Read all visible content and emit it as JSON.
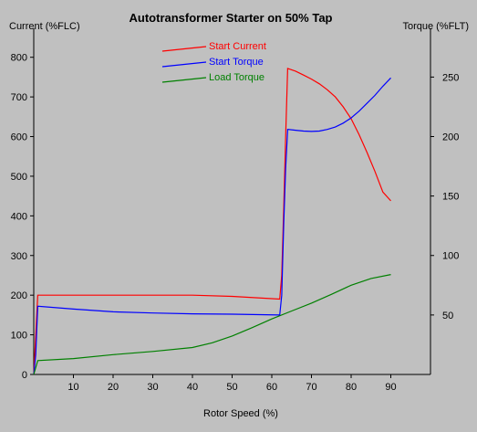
{
  "chart_data": {
    "type": "line",
    "title": "Autotransformer Starter on 50% Tap",
    "xlabel": "Rotor Speed (%)",
    "ylabel_left": "Current (%FLC)",
    "ylabel_right": "Torque (%FLT)",
    "xlim": [
      0,
      100
    ],
    "ylim_left": [
      0,
      850
    ],
    "ylim_right": [
      0,
      283.3
    ],
    "xticks": [
      10,
      20,
      30,
      40,
      50,
      60,
      70,
      80,
      90
    ],
    "yticks_left": [
      0,
      100,
      200,
      300,
      400,
      500,
      600,
      700,
      800
    ],
    "yticks_right": [
      50,
      100,
      150,
      200,
      250
    ],
    "grid": false,
    "legend_position": "top-center",
    "series": [
      {
        "name": "Start Current",
        "color": "#ff0000",
        "axis": "left",
        "x": [
          0,
          0.5,
          1,
          10,
          20,
          30,
          40,
          50,
          62,
          62.5,
          63,
          63.5,
          64,
          66,
          68,
          70,
          72,
          74,
          76,
          78,
          80,
          82,
          84,
          86,
          88,
          90
        ],
        "y": [
          0,
          100,
          200,
          200,
          200,
          200,
          200,
          197,
          190,
          250,
          420,
          600,
          772,
          765,
          755,
          745,
          733,
          718,
          700,
          675,
          645,
          605,
          560,
          512,
          460,
          438
        ]
      },
      {
        "name": "Start Torque",
        "color": "#0000ff",
        "axis": "left",
        "x": [
          0,
          0.5,
          1,
          10,
          20,
          30,
          40,
          50,
          62,
          62.5,
          63,
          63.5,
          64,
          66,
          68,
          70,
          72,
          74,
          76,
          78,
          80,
          82,
          84,
          86,
          88,
          90
        ],
        "y": [
          0,
          50,
          172,
          165,
          158,
          155,
          153,
          152,
          150,
          200,
          380,
          520,
          618,
          616,
          614,
          613,
          614,
          618,
          624,
          634,
          647,
          664,
          684,
          704,
          727,
          748
        ]
      },
      {
        "name": "Load Torque",
        "color": "#008000",
        "axis": "left",
        "x": [
          0,
          1,
          10,
          20,
          30,
          40,
          45,
          50,
          55,
          60,
          65,
          70,
          75,
          80,
          85,
          90
        ],
        "y": [
          0,
          35,
          40,
          50,
          58,
          68,
          80,
          97,
          118,
          140,
          160,
          180,
          202,
          225,
          242,
          252
        ]
      }
    ]
  }
}
